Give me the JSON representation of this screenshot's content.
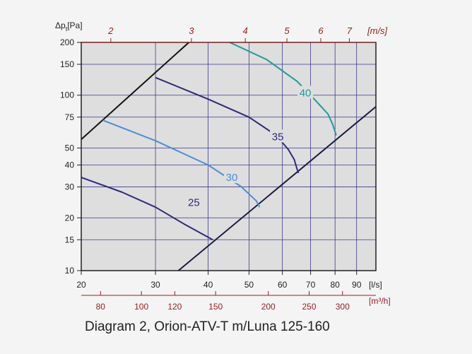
{
  "caption": "Diagram 2, Orion-ATV-T m/Luna 125-160",
  "chart_data": {
    "type": "line",
    "title": "",
    "ylabel": "Δp",
    "ylabel_sub": "t",
    "ylabel_unit": "[Pa]",
    "xlabel": "[l/s]",
    "x2label": "[m³/h]",
    "velocity_label": "[m/s]",
    "y_scale": "log",
    "x_scale": "log",
    "xlim": [
      20,
      100
    ],
    "ylim": [
      10,
      200
    ],
    "grid": true,
    "y_ticks": [
      10,
      15,
      20,
      30,
      40,
      50,
      75,
      100,
      150,
      200
    ],
    "x_ticks": [
      20,
      30,
      40,
      50,
      60,
      70,
      80,
      90
    ],
    "x_ticks_m3h": [
      80,
      100,
      120,
      150,
      200,
      250,
      300
    ],
    "velocity_ticks": [
      2,
      3,
      4,
      5,
      6,
      7
    ],
    "boundary_lines": [
      {
        "name": "upper",
        "color": "#111111",
        "points": [
          [
            20,
            56
          ],
          [
            36,
            200
          ]
        ]
      },
      {
        "name": "lower",
        "color": "#1a1a40",
        "points": [
          [
            34,
            10
          ],
          [
            100,
            86
          ]
        ]
      }
    ],
    "series": [
      {
        "name": "25",
        "color": "#2e2a7a",
        "label_pos": [
          37,
          24.5
        ],
        "points": [
          [
            20,
            34
          ],
          [
            25,
            28
          ],
          [
            30,
            23
          ],
          [
            35,
            18.5
          ],
          [
            41,
            15
          ]
        ]
      },
      {
        "name": "30",
        "color": "#4a8fd4",
        "label_pos": [
          45.5,
          34
        ],
        "points": [
          [
            22.5,
            72
          ],
          [
            30,
            55
          ],
          [
            40,
            40
          ],
          [
            48,
            30
          ],
          [
            52,
            25
          ],
          [
            53,
            23
          ]
        ]
      },
      {
        "name": "35",
        "color": "#2e2a7a",
        "label_pos": [
          58.5,
          58
        ],
        "points": [
          [
            30,
            126
          ],
          [
            40,
            95
          ],
          [
            50,
            75
          ],
          [
            58,
            59
          ],
          [
            62,
            49
          ],
          [
            64,
            43
          ],
          [
            65,
            38
          ],
          [
            65.5,
            36
          ]
        ]
      },
      {
        "name": "40",
        "color": "#1e9a9a",
        "label_pos": [
          68,
          103
        ],
        "points": [
          [
            45,
            200
          ],
          [
            55,
            160
          ],
          [
            65,
            120
          ],
          [
            72,
            93
          ],
          [
            77,
            78
          ],
          [
            79,
            68
          ],
          [
            80,
            62
          ],
          [
            80.5,
            59
          ]
        ]
      }
    ]
  }
}
